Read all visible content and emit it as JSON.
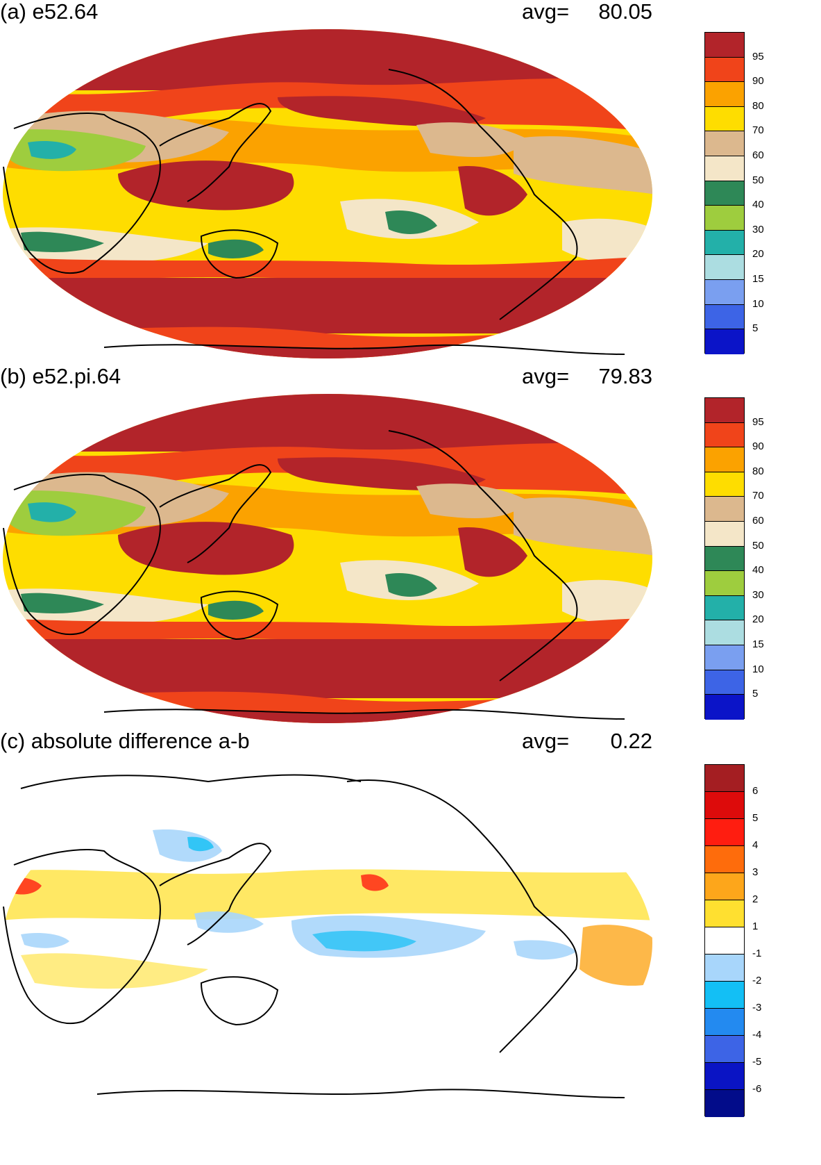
{
  "panels": [
    {
      "title": "(a) e52.64",
      "avg_label": "avg=",
      "avg_value": "80.05",
      "scale": "abs"
    },
    {
      "title": "(b) e52.pi.64",
      "avg_label": "avg=",
      "avg_value": "79.83",
      "scale": "abs"
    },
    {
      "title": "(c) absolute difference a-b",
      "avg_label": "avg=",
      "avg_value": "0.22",
      "scale": "diff"
    }
  ],
  "colorbars": {
    "abs": {
      "labels": [
        "95",
        "90",
        "80",
        "70",
        "60",
        "50",
        "40",
        "30",
        "20",
        "15",
        "10",
        "5"
      ],
      "colors": [
        "#b2242a",
        "#f0441a",
        "#fba200",
        "#fedd00",
        "#dcb88e",
        "#f4e6c8",
        "#2e8857",
        "#9ecd3e",
        "#23b0a9",
        "#acdde1",
        "#7a9ff0",
        "#3d64e6",
        "#0b14c8"
      ]
    },
    "diff": {
      "labels": [
        "6",
        "5",
        "4",
        "3",
        "2",
        "1",
        "-1",
        "-2",
        "-3",
        "-4",
        "-5",
        "-6"
      ],
      "colors": [
        "#a41e22",
        "#dd0b0b",
        "#ff1d10",
        "#fe6c0c",
        "#fda61b",
        "#ffe030",
        "#ffffff",
        "#a8d6fb",
        "#13bff5",
        "#238af0",
        "#3d64e6",
        "#0a14c4",
        "#020c8a"
      ]
    }
  },
  "map_colors": {
    "coast": "#000000"
  }
}
